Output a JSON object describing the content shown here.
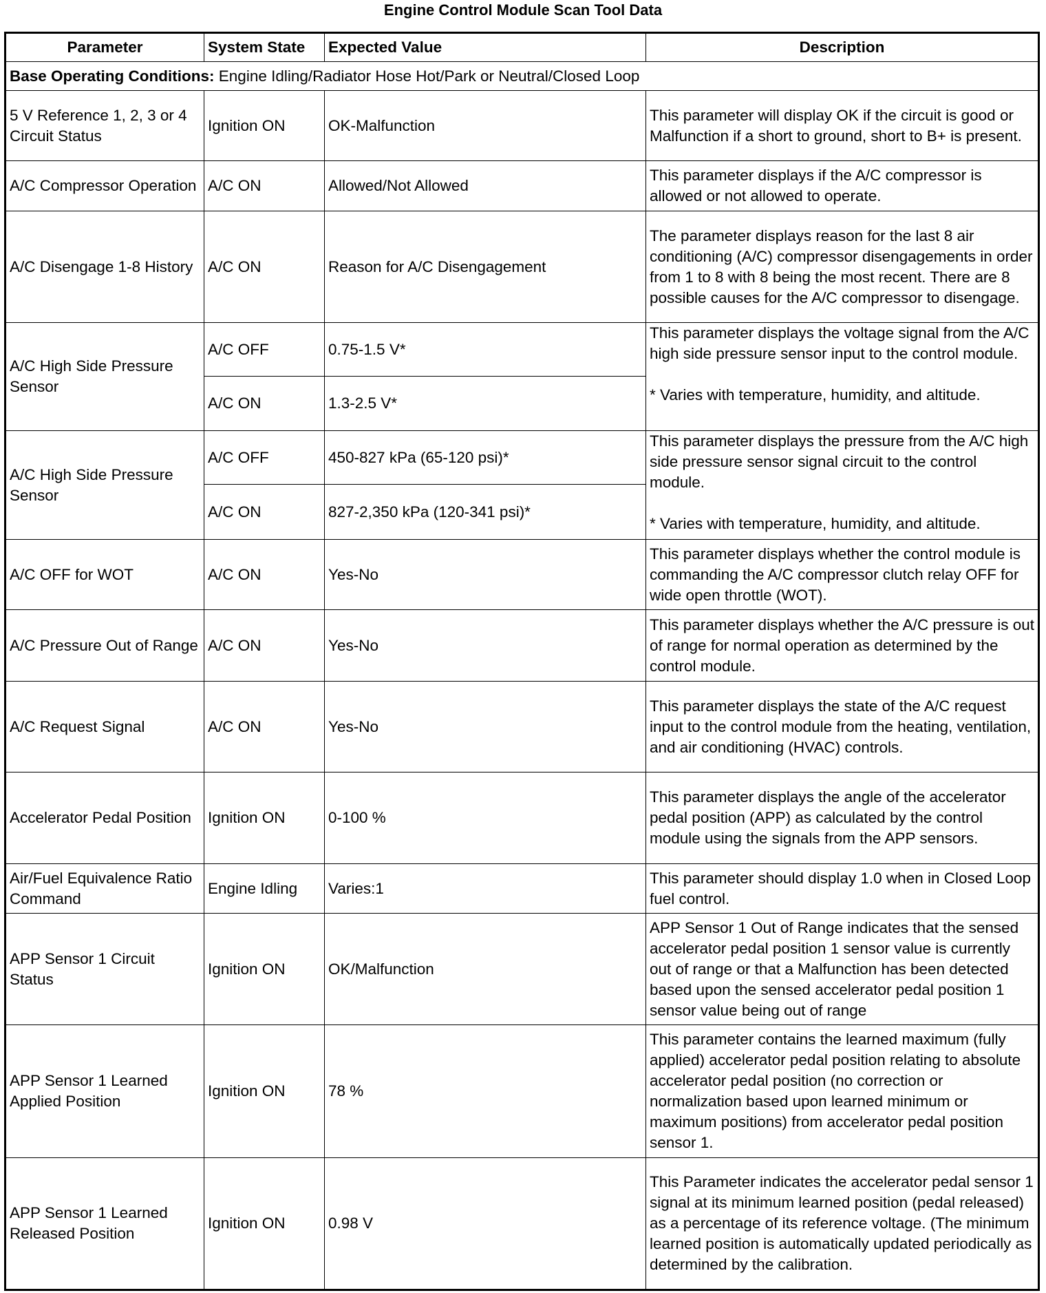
{
  "title": "Engine Control Module Scan Tool Data",
  "headers": [
    "Parameter",
    "System State",
    "Expected Value",
    "Description"
  ],
  "base": {
    "label": "Base Operating Conditions:",
    "text": " Engine Idling/Radiator Hose Hot/Park or Neutral/Closed Loop"
  },
  "rows": [
    {
      "param": "5 V Reference 1, 2, 3 or 4 Circuit Status",
      "state": "Ignition ON",
      "value": "OK-Malfunction",
      "desc": "This parameter will display OK if the circuit is good or Malfunction if a short to ground, short to B+ is present."
    },
    {
      "param": "A/C Compressor Operation",
      "state": "A/C ON",
      "value": "Allowed/Not Allowed",
      "desc": "This parameter displays if the A/C compressor is allowed or not allowed to operate."
    },
    {
      "param": "A/C Disengage 1-8 History",
      "state": "A/C ON",
      "value": "Reason for A/C Disengagement",
      "desc": "The parameter displays reason for the last 8 air conditioning (A/C) compressor disengagements in order from 1 to 8 with 8 being the most recent. There are 8 possible causes for the A/C compressor to disengage."
    },
    {
      "param": "A/C High Side Pressure Sensor",
      "state": "A/C OFF",
      "value": "0.75-1.5 V*",
      "state2": "A/C ON",
      "value2": "1.3-2.5 V*",
      "desc": "This parameter displays the voltage signal from the A/C high side pressure sensor input to the control module.",
      "note": "* Varies with temperature, humidity, and altitude."
    },
    {
      "param": "A/C High Side Pressure Sensor",
      "state": "A/C OFF",
      "value": "450-827 kPa (65-120 psi)*",
      "state2": "A/C ON",
      "value2": "827-2,350 kPa (120-341 psi)*",
      "desc": "This parameter displays the pressure from the A/C high side pressure sensor signal circuit to the control module.",
      "note": "* Varies with temperature, humidity, and altitude."
    },
    {
      "param": "A/C OFF for WOT",
      "state": "A/C ON",
      "value": "Yes-No",
      "desc": "This parameter displays whether the control module is commanding the A/C compressor clutch relay OFF for wide open throttle (WOT)."
    },
    {
      "param": "A/C Pressure Out of Range",
      "state": "A/C ON",
      "value": "Yes-No",
      "desc": "This parameter displays whether the A/C pressure is out of range for normal operation as determined by the control module."
    },
    {
      "param": "A/C Request Signal",
      "state": "A/C ON",
      "value": "Yes-No",
      "desc": "This parameter displays the state of the A/C request input to the control module from the heating, ventilation, and air conditioning (HVAC) controls."
    },
    {
      "param": "Accelerator Pedal Position",
      "state": "Ignition ON",
      "value": "0-100 %",
      "desc": "This parameter displays the angle of the accelerator pedal position (APP) as calculated by the control module using the signals from the APP sensors."
    },
    {
      "param": "Air/Fuel Equivalence Ratio Command",
      "state": "Engine Idling",
      "value": "Varies:1",
      "desc": "This parameter should display 1.0 when in Closed Loop fuel control."
    },
    {
      "param": "APP Sensor 1 Circuit Status",
      "state": "Ignition ON",
      "value": "OK/Malfunction",
      "desc": "APP Sensor 1 Out of Range indicates that the sensed accelerator pedal position 1 sensor value is currently out of range or that a Malfunction has been detected based upon the sensed accelerator pedal position 1 sensor value being out of range"
    },
    {
      "param": "APP Sensor 1 Learned Applied Position",
      "state": "Ignition ON",
      "value": "78 %",
      "desc": "This parameter contains the learned maximum (fully applied) accelerator pedal position relating to absolute accelerator pedal position (no correction or normalization based upon learned minimum or maximum positions) from accelerator pedal position sensor 1."
    },
    {
      "param": "APP Sensor 1 Learned Released Position",
      "state": "Ignition ON",
      "value": "0.98 V",
      "desc": "This Parameter indicates the accelerator pedal sensor 1 signal at its minimum learned position (pedal released) as a percentage of its reference voltage. (The minimum learned position is automatically updated periodically as determined by the calibration."
    }
  ]
}
